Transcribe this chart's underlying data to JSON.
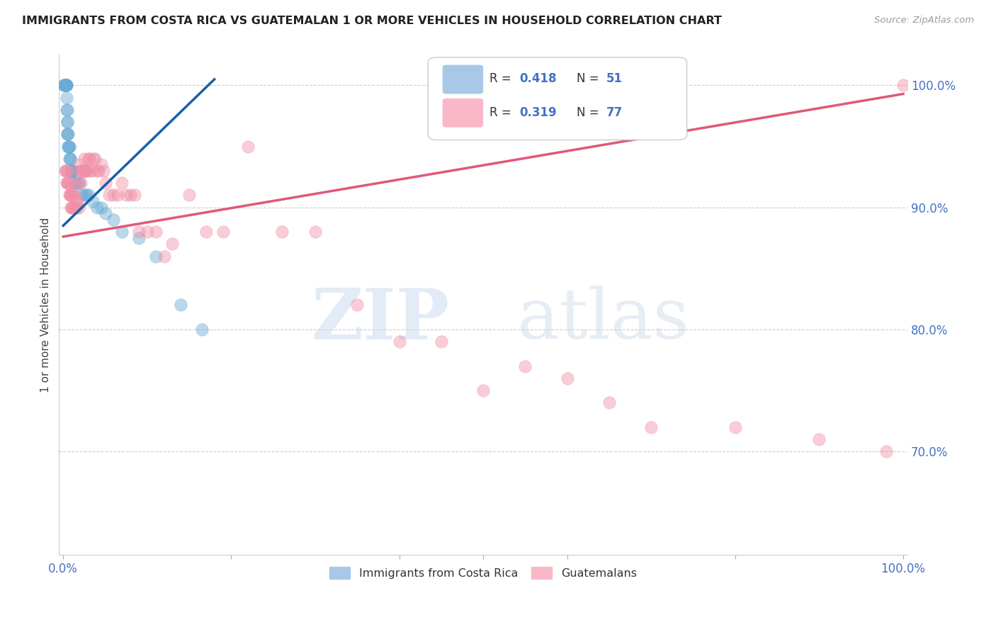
{
  "title": "IMMIGRANTS FROM COSTA RICA VS GUATEMALAN 1 OR MORE VEHICLES IN HOUSEHOLD CORRELATION CHART",
  "source": "Source: ZipAtlas.com",
  "ylabel": "1 or more Vehicles in Household",
  "ytick_labels": [
    "100.0%",
    "90.0%",
    "80.0%",
    "70.0%"
  ],
  "ytick_positions": [
    1.0,
    0.9,
    0.8,
    0.7
  ],
  "xlim": [
    -0.005,
    1.005
  ],
  "ylim": [
    0.615,
    1.025
  ],
  "blue_scatter_x": [
    0.001,
    0.001,
    0.002,
    0.002,
    0.002,
    0.003,
    0.003,
    0.003,
    0.003,
    0.003,
    0.004,
    0.004,
    0.004,
    0.004,
    0.005,
    0.005,
    0.005,
    0.005,
    0.005,
    0.006,
    0.006,
    0.006,
    0.007,
    0.007,
    0.007,
    0.008,
    0.008,
    0.009,
    0.009,
    0.01,
    0.01,
    0.011,
    0.012,
    0.013,
    0.015,
    0.017,
    0.019,
    0.022,
    0.025,
    0.028,
    0.03,
    0.035,
    0.04,
    0.045,
    0.05,
    0.06,
    0.07,
    0.09,
    0.11,
    0.14,
    0.165
  ],
  "blue_scatter_y": [
    1.0,
    1.0,
    1.0,
    1.0,
    1.0,
    1.0,
    1.0,
    1.0,
    1.0,
    1.0,
    1.0,
    1.0,
    0.99,
    0.98,
    0.98,
    0.97,
    0.97,
    0.96,
    0.96,
    0.96,
    0.95,
    0.95,
    0.95,
    0.95,
    0.94,
    0.94,
    0.94,
    0.93,
    0.93,
    0.93,
    0.93,
    0.93,
    0.93,
    0.92,
    0.92,
    0.92,
    0.92,
    0.91,
    0.91,
    0.91,
    0.91,
    0.905,
    0.9,
    0.9,
    0.895,
    0.89,
    0.88,
    0.875,
    0.86,
    0.82,
    0.8
  ],
  "pink_scatter_x": [
    0.002,
    0.003,
    0.004,
    0.004,
    0.005,
    0.005,
    0.006,
    0.006,
    0.007,
    0.007,
    0.008,
    0.008,
    0.009,
    0.009,
    0.01,
    0.01,
    0.011,
    0.011,
    0.012,
    0.013,
    0.014,
    0.015,
    0.016,
    0.017,
    0.018,
    0.018,
    0.019,
    0.02,
    0.021,
    0.022,
    0.023,
    0.024,
    0.025,
    0.026,
    0.027,
    0.028,
    0.03,
    0.031,
    0.032,
    0.034,
    0.036,
    0.038,
    0.04,
    0.042,
    0.045,
    0.048,
    0.05,
    0.055,
    0.06,
    0.065,
    0.07,
    0.075,
    0.08,
    0.085,
    0.09,
    0.1,
    0.11,
    0.12,
    0.13,
    0.15,
    0.17,
    0.19,
    0.22,
    0.26,
    0.3,
    0.35,
    0.4,
    0.45,
    0.5,
    0.55,
    0.6,
    0.65,
    0.7,
    0.8,
    0.9,
    0.98,
    1.0
  ],
  "pink_scatter_y": [
    0.93,
    0.93,
    0.93,
    0.92,
    0.93,
    0.92,
    0.92,
    0.92,
    0.92,
    0.91,
    0.91,
    0.91,
    0.91,
    0.9,
    0.91,
    0.9,
    0.91,
    0.9,
    0.9,
    0.91,
    0.9,
    0.905,
    0.9,
    0.905,
    0.9,
    0.92,
    0.935,
    0.93,
    0.92,
    0.93,
    0.93,
    0.93,
    0.94,
    0.93,
    0.93,
    0.93,
    0.94,
    0.94,
    0.93,
    0.93,
    0.94,
    0.94,
    0.93,
    0.93,
    0.935,
    0.93,
    0.92,
    0.91,
    0.91,
    0.91,
    0.92,
    0.91,
    0.91,
    0.91,
    0.88,
    0.88,
    0.88,
    0.86,
    0.87,
    0.91,
    0.88,
    0.88,
    0.95,
    0.88,
    0.88,
    0.82,
    0.79,
    0.79,
    0.75,
    0.77,
    0.76,
    0.74,
    0.72,
    0.72,
    0.71,
    0.7,
    1.0
  ],
  "blue_line_x": [
    0.0,
    0.18
  ],
  "blue_line_y": [
    0.885,
    1.005
  ],
  "pink_line_x": [
    0.0,
    1.0
  ],
  "pink_line_y": [
    0.876,
    0.993
  ],
  "blue_scatter_color": "#6aaad4",
  "pink_scatter_color": "#f090a8",
  "blue_line_color": "#1a5fa8",
  "pink_line_color": "#e05878",
  "legend_blue_color": "#a8c8e8",
  "legend_pink_color": "#f8b8c8",
  "r_value_color": "#4472c4",
  "n_value_color": "#4472c4",
  "watermark_zip": "ZIP",
  "watermark_atlas": "atlas",
  "background_color": "#ffffff",
  "grid_color": "#cccccc",
  "xtick_color": "#4472c4",
  "ytick_color": "#4472c4"
}
